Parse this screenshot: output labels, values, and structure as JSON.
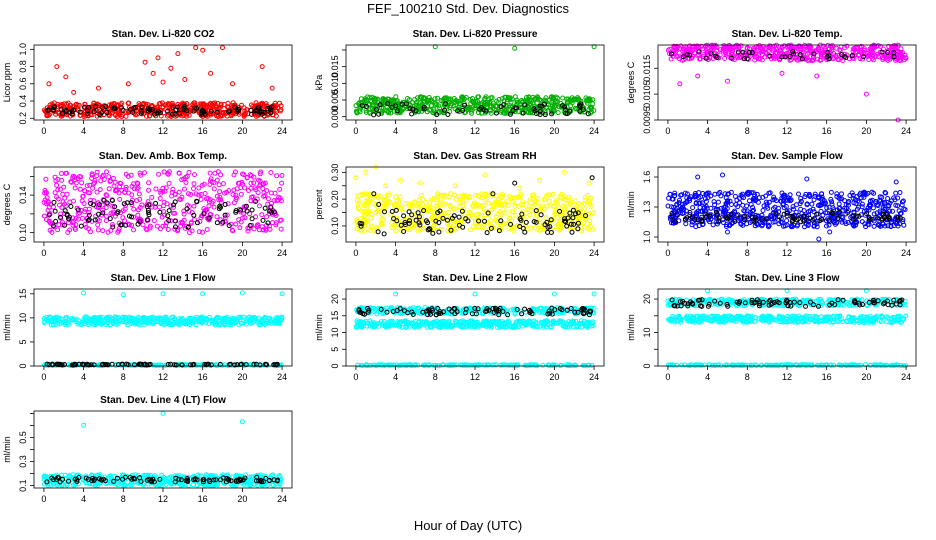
{
  "figure": {
    "title": "FEF_100210  Std. Dev. Diagnostics",
    "xlabel": "Hour of Day (UTC)"
  },
  "chart_data": [
    {
      "type": "scatter",
      "title": "Stan. Dev. Li-820 CO2",
      "ylabel": "Licor ppm",
      "xlim": [
        -1,
        25
      ],
      "xticks": [
        0,
        4,
        8,
        12,
        16,
        20,
        24
      ],
      "ylim": [
        0.18,
        1.05
      ],
      "yticks": [
        0.2,
        0.4,
        0.6,
        0.8,
        1.0
      ],
      "ytick_labels": [
        "0.2",
        "0.4",
        "0.6",
        "0.8",
        "1.0"
      ],
      "series": [
        {
          "color": "#ff0000",
          "band": {
            "x": [
              0,
              24
            ],
            "y": [
              0.22,
              0.38
            ]
          },
          "n_points": 480,
          "outliers": {
            "x": [
              0.5,
              1.3,
              2.2,
              3.0,
              5.5,
              8.5,
              10.2,
              11.0,
              11.5,
              12.0,
              12.8,
              13.5,
              14.2,
              15.3,
              16.0,
              16.8,
              18.0,
              19.0,
              22.0,
              23.0
            ],
            "y": [
              0.6,
              0.8,
              0.68,
              0.5,
              0.55,
              0.6,
              0.85,
              0.72,
              0.9,
              0.62,
              0.78,
              0.95,
              0.65,
              1.02,
              0.99,
              0.72,
              1.02,
              0.6,
              0.8,
              0.55
            ]
          }
        },
        {
          "color": "#000000",
          "band": {
            "x": [
              0.3,
              23.7
            ],
            "y": [
              0.24,
              0.34
            ]
          },
          "n_points": 95
        }
      ]
    },
    {
      "type": "scatter",
      "title": "Stan. Dev. Li-820 Pressure",
      "ylabel": "kPa",
      "xlim": [
        -1,
        25
      ],
      "xticks": [
        0,
        4,
        8,
        12,
        16,
        20,
        24
      ],
      "ylim": [
        -0.001,
        0.0215
      ],
      "yticks": [
        0.0,
        0.005,
        0.01,
        0.015,
        0.02
      ],
      "ytick_labels": [
        "0.000",
        "0.005",
        "0.010",
        "0.015",
        ""
      ],
      "series": [
        {
          "color": "#00b000",
          "band": {
            "x": [
              0,
              24
            ],
            "y": [
              0.001,
              0.006
            ]
          },
          "n_points": 520,
          "outliers": {
            "x": [
              8.0,
              16.0,
              24.0
            ],
            "y": [
              0.021,
              0.0205,
              0.021
            ]
          }
        },
        {
          "color": "#000000",
          "band": {
            "x": [
              0.3,
              23.7
            ],
            "y": [
              0.0005,
              0.004
            ]
          },
          "n_points": 60
        }
      ]
    },
    {
      "type": "scatter",
      "title": "Stan. Dev. Li-820 Temp.",
      "ylabel": "degrees C",
      "xlim": [
        -1,
        25
      ],
      "xticks": [
        0,
        4,
        8,
        12,
        16,
        20,
        24
      ],
      "ylim": [
        0.0095,
        0.0124
      ],
      "yticks": [
        0.0095,
        0.0105,
        0.0115
      ],
      "ytick_labels": [
        "0.0095",
        "0.0105",
        "0.0115"
      ],
      "series": [
        {
          "color": "#ff00ff",
          "band": {
            "x": [
              0,
              24
            ],
            "y": [
              0.0118,
              0.0124
            ]
          },
          "n_points": 480,
          "outliers": {
            "x": [
              1.2,
              3.0,
              6.0,
              11.5,
              15.0,
              20.0,
              23.2
            ],
            "y": [
              0.0109,
              0.0112,
              0.011,
              0.0113,
              0.0112,
              0.0105,
              0.0095
            ]
          }
        },
        {
          "color": "#000000",
          "band": {
            "x": [
              0.3,
              23.7
            ],
            "y": [
              0.01185,
              0.01215
            ]
          },
          "n_points": 40
        }
      ]
    },
    {
      "type": "scatter",
      "title": "Stan. Dev. Amb. Box Temp.",
      "ylabel": "degrees C",
      "xlim": [
        -1,
        25
      ],
      "xticks": [
        0,
        4,
        8,
        12,
        16,
        20,
        24
      ],
      "ylim": [
        0.09,
        0.17
      ],
      "yticks": [
        0.1,
        0.12,
        0.14,
        0.16
      ],
      "ytick_labels": [
        "0.10",
        "",
        "0.14",
        ""
      ],
      "series": [
        {
          "color": "#ff00ff",
          "band": {
            "x": [
              0,
              24
            ],
            "y": [
              0.1,
              0.165
            ]
          },
          "n_points": 500
        },
        {
          "color": "#000000",
          "band": {
            "x": [
              0.3,
              23.7
            ],
            "y": [
              0.105,
              0.135
            ]
          },
          "n_points": 90
        }
      ]
    },
    {
      "type": "scatter",
      "title": "Stan. Dev. Gas Stream RH",
      "ylabel": "percent",
      "xlim": [
        -1,
        25
      ],
      "xticks": [
        0,
        4,
        8,
        12,
        16,
        20,
        24
      ],
      "ylim": [
        0.04,
        0.32
      ],
      "yticks": [
        0.1,
        0.15,
        0.2,
        0.25,
        0.3
      ],
      "ytick_labels": [
        "0.10",
        "",
        "0.20",
        "",
        "0.30"
      ],
      "series": [
        {
          "color": "#ffff00",
          "band": {
            "x": [
              0,
              24
            ],
            "y": [
              0.08,
              0.22
            ]
          },
          "n_points": 560,
          "outliers": {
            "x": [
              0.0,
              1.0,
              2.0,
              3.0,
              4.5,
              6.5,
              10.0,
              13.0,
              16.5,
              18.5,
              21.0,
              23.5
            ],
            "y": [
              0.28,
              0.3,
              0.32,
              0.25,
              0.27,
              0.26,
              0.25,
              0.29,
              0.24,
              0.27,
              0.3,
              0.26
            ]
          }
        },
        {
          "color": "#000000",
          "band": {
            "x": [
              0.3,
              23.7
            ],
            "y": [
              0.07,
              0.16
            ]
          },
          "n_points": 90,
          "outliers": {
            "x": [
              1.8,
              2.3,
              13.8,
              16.0,
              23.8
            ],
            "y": [
              0.22,
              0.18,
              0.22,
              0.26,
              0.28
            ]
          }
        }
      ]
    },
    {
      "type": "scatter",
      "title": "Stan. Dev. Sample Flow",
      "ylabel": "ml/min",
      "xlim": [
        -1,
        25
      ],
      "xticks": [
        0,
        4,
        8,
        12,
        16,
        20,
        24
      ],
      "ylim": [
        0.95,
        1.7
      ],
      "yticks": [
        1.0,
        1.3,
        1.6
      ],
      "ytick_labels": [
        "1.0",
        "1.3",
        "1.6"
      ],
      "series": [
        {
          "color": "#0000ff",
          "band": {
            "x": [
              0,
              24
            ],
            "y": [
              1.1,
              1.45
            ]
          },
          "n_points": 620,
          "outliers": {
            "x": [
              3.0,
              5.5,
              6.0,
              14.0,
              15.2,
              16.3,
              23.0
            ],
            "y": [
              1.6,
              1.62,
              1.05,
              1.58,
              0.98,
              1.05,
              1.55
            ]
          }
        },
        {
          "color": "#000000",
          "band": {
            "x": [
              0.3,
              23.7
            ],
            "y": [
              1.15,
              1.25
            ]
          },
          "n_points": 80
        }
      ]
    },
    {
      "type": "scatter",
      "title": "Stan. Dev. Line 1 Flow",
      "ylabel": "ml/min",
      "xlim": [
        -1,
        25
      ],
      "xticks": [
        0,
        4,
        8,
        12,
        16,
        20,
        24
      ],
      "ylim": [
        0,
        16
      ],
      "yticks": [
        0,
        5,
        10,
        15
      ],
      "ytick_labels": [
        "0",
        "5",
        "10",
        "15"
      ],
      "series": [
        {
          "color": "#00ffff",
          "band": {
            "x": [
              0,
              24
            ],
            "y": [
              8.5,
              10.2
            ]
          },
          "n_points": 420,
          "outliers": {
            "x": [
              4.0,
              8.0,
              12.0,
              16.0,
              20.0,
              24.0
            ],
            "y": [
              15.2,
              14.8,
              15.0,
              15.0,
              15.2,
              15.0
            ]
          }
        },
        {
          "color": "#00ffff",
          "band": {
            "x": [
              0,
              24
            ],
            "y": [
              0.1,
              0.3
            ]
          },
          "n_points": 160
        },
        {
          "color": "#000000",
          "band": {
            "x": [
              0.3,
              23.7
            ],
            "y": [
              0.2,
              0.4
            ]
          },
          "n_points": 90
        }
      ]
    },
    {
      "type": "scatter",
      "title": "Stan. Dev. Line 2 Flow",
      "ylabel": "ml/min",
      "xlim": [
        -1,
        25
      ],
      "xticks": [
        0,
        4,
        8,
        12,
        16,
        20,
        24
      ],
      "ylim": [
        0,
        23
      ],
      "yticks": [
        0,
        5,
        10,
        15,
        20
      ],
      "ytick_labels": [
        "0",
        "5",
        "10",
        "15",
        "20"
      ],
      "series": [
        {
          "color": "#00ffff",
          "band": {
            "x": [
              0,
              24
            ],
            "y": [
              11.5,
              13.5
            ]
          },
          "n_points": 380
        },
        {
          "color": "#00ffff",
          "band": {
            "x": [
              0,
              24
            ],
            "y": [
              15.5,
              17.5
            ]
          },
          "n_points": 300,
          "outliers": {
            "x": [
              4.0,
              12.0,
              20.0,
              24.0
            ],
            "y": [
              21.5,
              21.5,
              21.5,
              21.5
            ]
          }
        },
        {
          "color": "#00ffff",
          "band": {
            "x": [
              0,
              24
            ],
            "y": [
              0.1,
              0.4
            ]
          },
          "n_points": 160
        },
        {
          "color": "#000000",
          "band": {
            "x": [
              0.3,
              23.7
            ],
            "y": [
              15.3,
              17.3
            ]
          },
          "n_points": 90
        }
      ]
    },
    {
      "type": "scatter",
      "title": "Stan. Dev. Line 3 Flow",
      "ylabel": "ml/min",
      "xlim": [
        -1,
        25
      ],
      "xticks": [
        0,
        4,
        8,
        12,
        16,
        20,
        24
      ],
      "ylim": [
        0,
        23
      ],
      "yticks": [
        0,
        5,
        10,
        15,
        20
      ],
      "ytick_labels": [
        "0",
        "",
        "10",
        "",
        "20"
      ],
      "series": [
        {
          "color": "#00ffff",
          "band": {
            "x": [
              0,
              24
            ],
            "y": [
              13,
              15
            ]
          },
          "n_points": 380
        },
        {
          "color": "#00ffff",
          "band": {
            "x": [
              0,
              24
            ],
            "y": [
              18,
              20
            ]
          },
          "n_points": 300,
          "outliers": {
            "x": [
              4.0,
              12.0,
              20.0
            ],
            "y": [
              22.5,
              22.5,
              22.5
            ]
          }
        },
        {
          "color": "#00ffff",
          "band": {
            "x": [
              0,
              24
            ],
            "y": [
              0.1,
              0.4
            ]
          },
          "n_points": 160
        },
        {
          "color": "#000000",
          "band": {
            "x": [
              0.3,
              23.7
            ],
            "y": [
              17.8,
              19.8
            ]
          },
          "n_points": 90
        }
      ]
    },
    {
      "type": "scatter",
      "title": "Stan. Dev. Line 4 (LT) Flow",
      "ylabel": "ml/min",
      "xlim": [
        -1,
        25
      ],
      "xticks": [
        0,
        4,
        8,
        12,
        16,
        20,
        24
      ],
      "ylim": [
        0.08,
        0.72
      ],
      "yticks": [
        0.1,
        0.2,
        0.3,
        0.4,
        0.5,
        0.6,
        0.7
      ],
      "ytick_labels": [
        "0.1",
        "",
        "0.3",
        "",
        "0.5",
        "",
        ""
      ],
      "series": [
        {
          "color": "#00ffff",
          "band": {
            "x": [
              0,
              24
            ],
            "y": [
              0.1,
              0.19
            ]
          },
          "n_points": 420,
          "outliers": {
            "x": [
              4.0,
              12.0,
              20.0
            ],
            "y": [
              0.6,
              0.7,
              0.63
            ]
          }
        },
        {
          "color": "#000000",
          "band": {
            "x": [
              0.3,
              23.7
            ],
            "y": [
              0.13,
              0.17
            ]
          },
          "n_points": 90
        }
      ]
    }
  ]
}
